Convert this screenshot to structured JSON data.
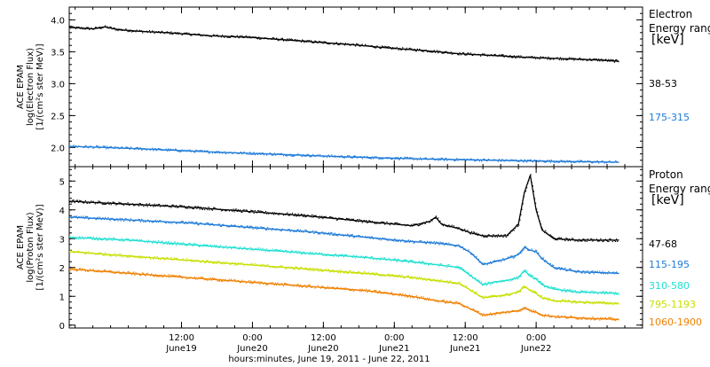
{
  "chart_data": [
    {
      "type": "line",
      "ylabel": [
        "ACE EPAM",
        "log(Electron Flux)",
        "[1/(cm²s ster MeV)]"
      ],
      "ylim": [
        1.7,
        4.2
      ],
      "yticks": [
        "2.0",
        "2.5",
        "3.0",
        "3.5",
        "4.0"
      ],
      "yticks_values": [
        2.0,
        2.5,
        3.0,
        3.5,
        4.0
      ],
      "legend_title": [
        "Electron",
        "Energy ranges",
        "[keV]"
      ],
      "legend_placement": "right",
      "series": [
        {
          "name": "38-53",
          "color": "#000000",
          "x": [
            0,
            4,
            6,
            8,
            12,
            18,
            24,
            30,
            36,
            42,
            48,
            54,
            60,
            66,
            72,
            78,
            84,
            90,
            93
          ],
          "values": [
            3.88,
            3.86,
            3.89,
            3.85,
            3.82,
            3.79,
            3.75,
            3.73,
            3.69,
            3.65,
            3.61,
            3.56,
            3.52,
            3.47,
            3.44,
            3.41,
            3.39,
            3.37,
            3.35
          ]
        },
        {
          "name": "175-315",
          "color": "#1e7bd8",
          "x": [
            0,
            12,
            24,
            36,
            48,
            60,
            72,
            84,
            93
          ],
          "values": [
            2.02,
            1.98,
            1.93,
            1.89,
            1.85,
            1.82,
            1.8,
            1.78,
            1.77
          ]
        }
      ]
    },
    {
      "type": "line",
      "ylabel": [
        "ACE EPAM",
        "log(Proton Flux)",
        "[1/(cm²s ster MeV)]"
      ],
      "ylim": [
        -0.1,
        5.5
      ],
      "yticks": [
        "0",
        "1",
        "2",
        "3",
        "4",
        "5"
      ],
      "yticks_values": [
        0,
        1,
        2,
        3,
        4,
        5
      ],
      "legend_title": [
        "Proton",
        "Energy ranges",
        "[keV]"
      ],
      "legend_placement": "right",
      "x_unit_note": "hours after 2011-06-18 17:00",
      "xticks": [
        {
          "x": 19,
          "time": "12:00",
          "date": "June19"
        },
        {
          "x": 31,
          "time": "0:00",
          "date": "June20"
        },
        {
          "x": 43,
          "time": "12:00",
          "date": "June20"
        },
        {
          "x": 55,
          "time": "0:00",
          "date": "June21"
        },
        {
          "x": 67,
          "time": "12:00",
          "date": "June21"
        },
        {
          "x": 79,
          "time": "0:00",
          "date": "June22"
        }
      ],
      "xlim": [
        0,
        97
      ],
      "xlabel": "hours:minutes, June 19, 2011 - June 22, 2011",
      "series": [
        {
          "name": "47-68",
          "color": "#000000",
          "x": [
            0,
            10,
            20,
            30,
            40,
            50,
            58,
            61,
            62,
            63,
            66,
            68,
            70,
            74,
            76,
            77,
            78,
            79,
            80,
            82,
            86,
            93
          ],
          "values": [
            4.3,
            4.2,
            4.1,
            3.95,
            3.8,
            3.6,
            3.45,
            3.6,
            3.75,
            3.5,
            3.35,
            3.2,
            3.1,
            3.1,
            3.5,
            4.6,
            5.2,
            4.0,
            3.3,
            3.0,
            2.95,
            2.95
          ]
        },
        {
          "name": "115-195",
          "color": "#1e7bd8",
          "x": [
            0,
            10,
            20,
            30,
            40,
            50,
            58,
            62,
            66,
            68,
            70,
            72,
            74,
            76,
            77,
            78,
            79,
            80,
            82,
            86,
            93
          ],
          "values": [
            3.75,
            3.65,
            3.55,
            3.4,
            3.25,
            3.05,
            2.9,
            2.85,
            2.75,
            2.5,
            2.1,
            2.2,
            2.3,
            2.45,
            2.7,
            2.6,
            2.55,
            2.3,
            2.0,
            1.85,
            1.8
          ]
        },
        {
          "name": "310-580",
          "color": "#1fe0d0",
          "x": [
            0,
            10,
            20,
            30,
            40,
            50,
            58,
            62,
            66,
            68,
            70,
            72,
            74,
            76,
            77,
            78,
            79,
            80,
            82,
            86,
            93
          ],
          "values": [
            3.05,
            2.95,
            2.8,
            2.65,
            2.5,
            2.35,
            2.2,
            2.1,
            2.0,
            1.7,
            1.4,
            1.5,
            1.55,
            1.65,
            1.9,
            1.7,
            1.6,
            1.4,
            1.25,
            1.15,
            1.1
          ]
        },
        {
          "name": "795-1193",
          "color": "#c7df00",
          "x": [
            0,
            10,
            20,
            30,
            40,
            50,
            58,
            62,
            66,
            68,
            70,
            72,
            74,
            76,
            77,
            78,
            79,
            80,
            82,
            86,
            93
          ],
          "values": [
            2.55,
            2.4,
            2.25,
            2.1,
            1.95,
            1.8,
            1.65,
            1.55,
            1.45,
            1.2,
            0.95,
            1.0,
            1.05,
            1.15,
            1.35,
            1.2,
            1.1,
            0.95,
            0.85,
            0.8,
            0.75
          ]
        },
        {
          "name": "1060-1900",
          "color": "#f08000",
          "x": [
            0,
            10,
            20,
            30,
            40,
            50,
            58,
            62,
            66,
            68,
            70,
            72,
            74,
            76,
            77,
            78,
            79,
            80,
            82,
            86,
            93
          ],
          "values": [
            1.95,
            1.8,
            1.65,
            1.5,
            1.35,
            1.2,
            1.0,
            0.85,
            0.75,
            0.55,
            0.35,
            0.4,
            0.45,
            0.5,
            0.6,
            0.5,
            0.45,
            0.35,
            0.3,
            0.25,
            0.2
          ]
        }
      ]
    }
  ]
}
